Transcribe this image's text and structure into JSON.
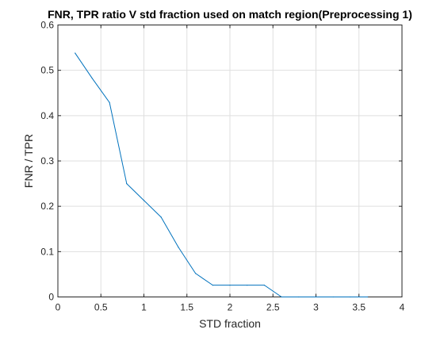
{
  "chart_data": {
    "type": "line",
    "title": "FNR, TPR ratio V std fraction used on match region(Preprocessing 1)",
    "xlabel": "STD fraction",
    "ylabel": "FNR / TPR",
    "xlim": [
      0,
      4
    ],
    "ylim": [
      0,
      0.6
    ],
    "xticks": [
      0,
      0.5,
      1,
      1.5,
      2,
      2.5,
      3,
      3.5,
      4
    ],
    "xtick_labels": [
      "0",
      "0.5",
      "1",
      "1.5",
      "2",
      "2.5",
      "3",
      "3.5",
      "4"
    ],
    "yticks": [
      0,
      0.1,
      0.2,
      0.3,
      0.4,
      0.5,
      0.6
    ],
    "ytick_labels": [
      "0",
      "0.1",
      "0.2",
      "0.3",
      "0.4",
      "0.5",
      "0.6"
    ],
    "grid": true,
    "legend": "none",
    "colors": {
      "line": "#0072BD",
      "grid": "#dfdfdf",
      "axis": "#262626"
    },
    "series": [
      {
        "x": [
          0.2,
          0.4,
          0.6,
          0.8,
          1.0,
          1.2,
          1.4,
          1.6,
          1.8,
          2.0,
          2.2,
          2.4,
          2.6,
          2.8,
          3.0,
          3.2,
          3.4,
          3.6
        ],
        "y": [
          0.538,
          0.482,
          0.429,
          0.25,
          0.213,
          0.176,
          0.11,
          0.052,
          0.026,
          0.026,
          0.026,
          0.026,
          0.0,
          0.0,
          0.0,
          0.0,
          0.0,
          0.0
        ]
      }
    ]
  }
}
